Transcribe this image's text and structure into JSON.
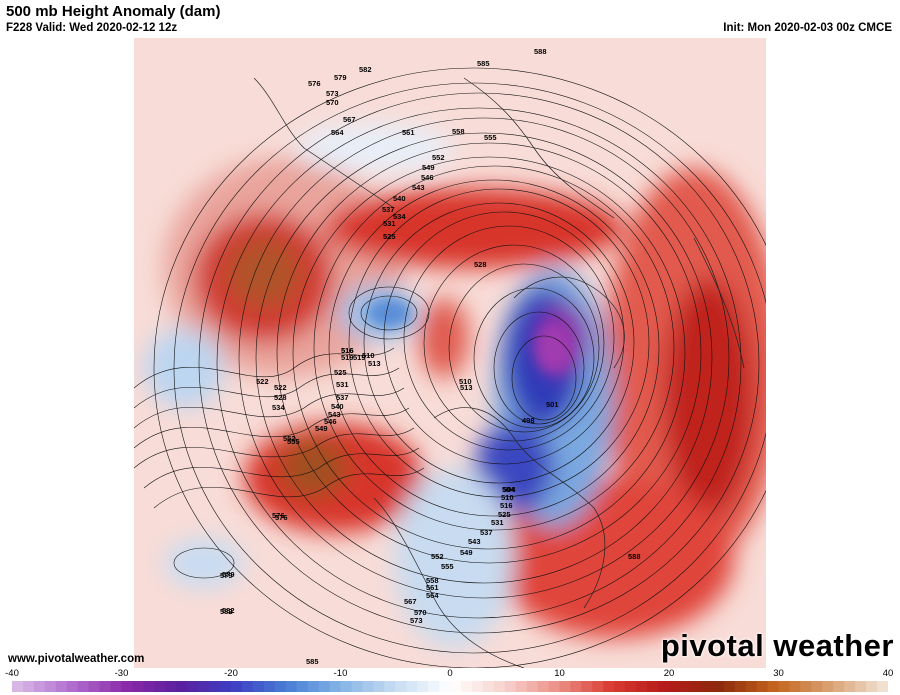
{
  "header": {
    "title": "500 mb Height Anomaly (dam)",
    "valid": "F228 Valid: Wed 2020-02-12 12z",
    "init": "Init: Mon 2020-02-03 00z CMCE"
  },
  "footer": {
    "website": "www.pivotalweather.com",
    "brand": "pivotal weather"
  },
  "colorbar": {
    "tick_labels": [
      "-40",
      "-30",
      "-20",
      "-10",
      "0",
      "10",
      "20",
      "30",
      "40"
    ],
    "colors": [
      "#d8b7e6",
      "#b06ed0",
      "#8b2aa8",
      "#5a1f9e",
      "#3e3fc4",
      "#4a7fd6",
      "#86b5e6",
      "#c7dcf2",
      "#ffffff",
      "#f7d3cf",
      "#ec8f86",
      "#d83a2f",
      "#b41a1a",
      "#8c2b0c",
      "#c4631c",
      "#d9a070",
      "#efe0d0"
    ]
  },
  "map": {
    "contour_labels": [
      "588",
      "585",
      "582",
      "579",
      "576",
      "573",
      "570",
      "567",
      "564",
      "561",
      "558",
      "555",
      "552",
      "549",
      "546",
      "543",
      "540",
      "537",
      "534",
      "531",
      "528",
      "525",
      "522",
      "519",
      "516",
      "513",
      "510",
      "504",
      "501",
      "498",
      "585",
      "582",
      "579",
      "576",
      "573",
      "570",
      "567",
      "564",
      "561",
      "558",
      "555",
      "552",
      "549",
      "543",
      "537",
      "531",
      "525",
      "516",
      "510",
      "504",
      "555",
      "552",
      "549",
      "546",
      "543",
      "540",
      "537",
      "534",
      "531",
      "528",
      "525",
      "522",
      "519",
      "516",
      "513",
      "510",
      "576",
      "579",
      "582",
      "588"
    ],
    "colors": {
      "positive_strong": "#b41a1a",
      "positive_max": "#8c3a0c",
      "negative_strong": "#3e3fc4",
      "negative_max": "#8b2aa8"
    }
  }
}
